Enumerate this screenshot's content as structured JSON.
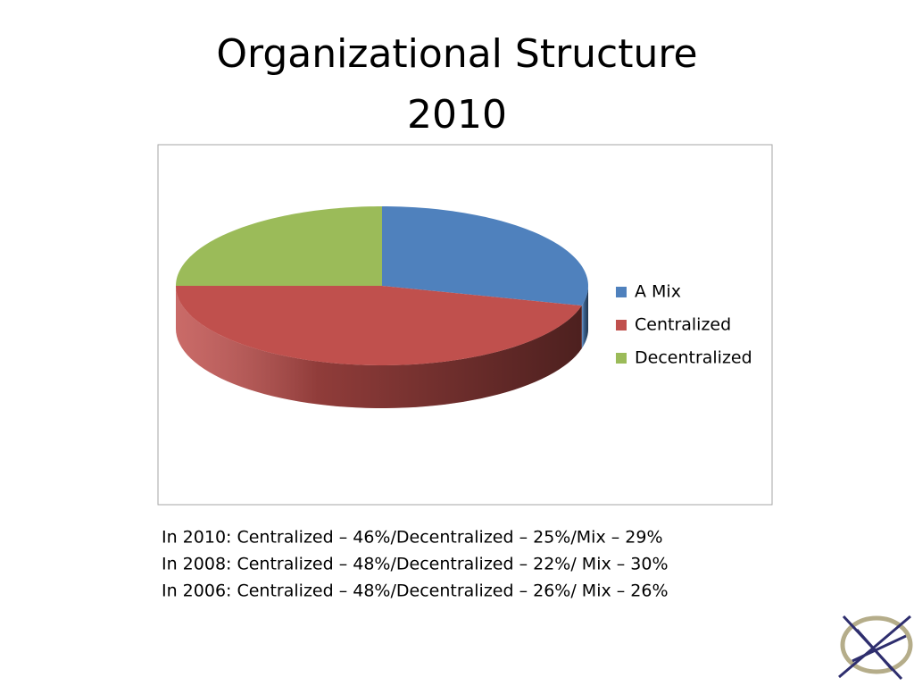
{
  "chart_data": {
    "type": "pie",
    "title": "Organizational Structure",
    "subtitle": "2010",
    "categories": [
      "A Mix",
      "Centralized",
      "Decentralized"
    ],
    "values": [
      29,
      46,
      25
    ],
    "colors": [
      "#4f81bd",
      "#c0504d",
      "#9bbb59"
    ],
    "legend": "right",
    "annotations": [
      "In 2010:  Centralized – 46%/Decentralized – 25%/Mix – 29%",
      "In 2008:  Centralized – 48%/Decentralized – 22%/ Mix – 30%",
      "In 2006:  Centralized – 48%/Decentralized – 26%/ Mix – 26%"
    ]
  }
}
